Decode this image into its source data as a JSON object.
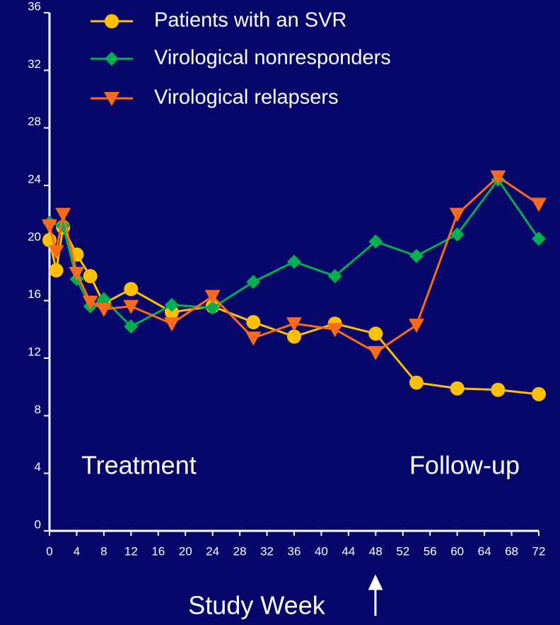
{
  "chart_data": {
    "type": "line",
    "annotations": [
      "Treatment",
      "Follow-up"
    ],
    "x_label": "Study Week",
    "xlim": [
      0,
      72
    ],
    "xticks": [
      0,
      4,
      8,
      12,
      16,
      20,
      24,
      28,
      32,
      36,
      40,
      44,
      48,
      52,
      56,
      60,
      64,
      68,
      72
    ],
    "ylim": [
      0,
      36
    ],
    "yticks": [
      0,
      4,
      8,
      12,
      16,
      20,
      24,
      28,
      32,
      36
    ],
    "series": [
      {
        "name": "Patients with an SVR",
        "color": "#ffc000",
        "marker": "circle",
        "x": [
          0,
          1,
          2,
          4,
          6,
          8,
          12,
          18,
          24,
          30,
          36,
          42,
          48,
          54,
          60,
          66,
          72
        ],
        "values": [
          20.2,
          18.1,
          21.1,
          19.2,
          17.7,
          15.8,
          16.8,
          15.2,
          15.6,
          14.5,
          13.5,
          14.4,
          13.7,
          10.3,
          9.9,
          9.8,
          9.5
        ]
      },
      {
        "name": "Virological nonresponders",
        "color": "#00b050",
        "marker": "diamond",
        "x": [
          0,
          2,
          4,
          6,
          8,
          12,
          18,
          24,
          30,
          36,
          42,
          48,
          54,
          60,
          66,
          72
        ],
        "values": [
          21.4,
          21.2,
          17.5,
          15.6,
          16.1,
          14.2,
          15.7,
          15.5,
          17.3,
          18.7,
          17.7,
          20.1,
          19.1,
          20.6,
          24.4,
          20.3
        ]
      },
      {
        "name": "Virological relapsers",
        "color": "#ff6a1a",
        "marker": "triangle",
        "x": [
          0,
          1,
          2,
          4,
          6,
          8,
          12,
          18,
          24,
          30,
          36,
          42,
          48,
          54,
          60,
          66,
          72
        ],
        "values": [
          21.2,
          19.4,
          22.0,
          17.9,
          15.9,
          15.4,
          15.6,
          14.4,
          16.3,
          13.4,
          14.4,
          14.0,
          12.4,
          14.3,
          22.0,
          24.6,
          22.7
        ]
      }
    ]
  }
}
